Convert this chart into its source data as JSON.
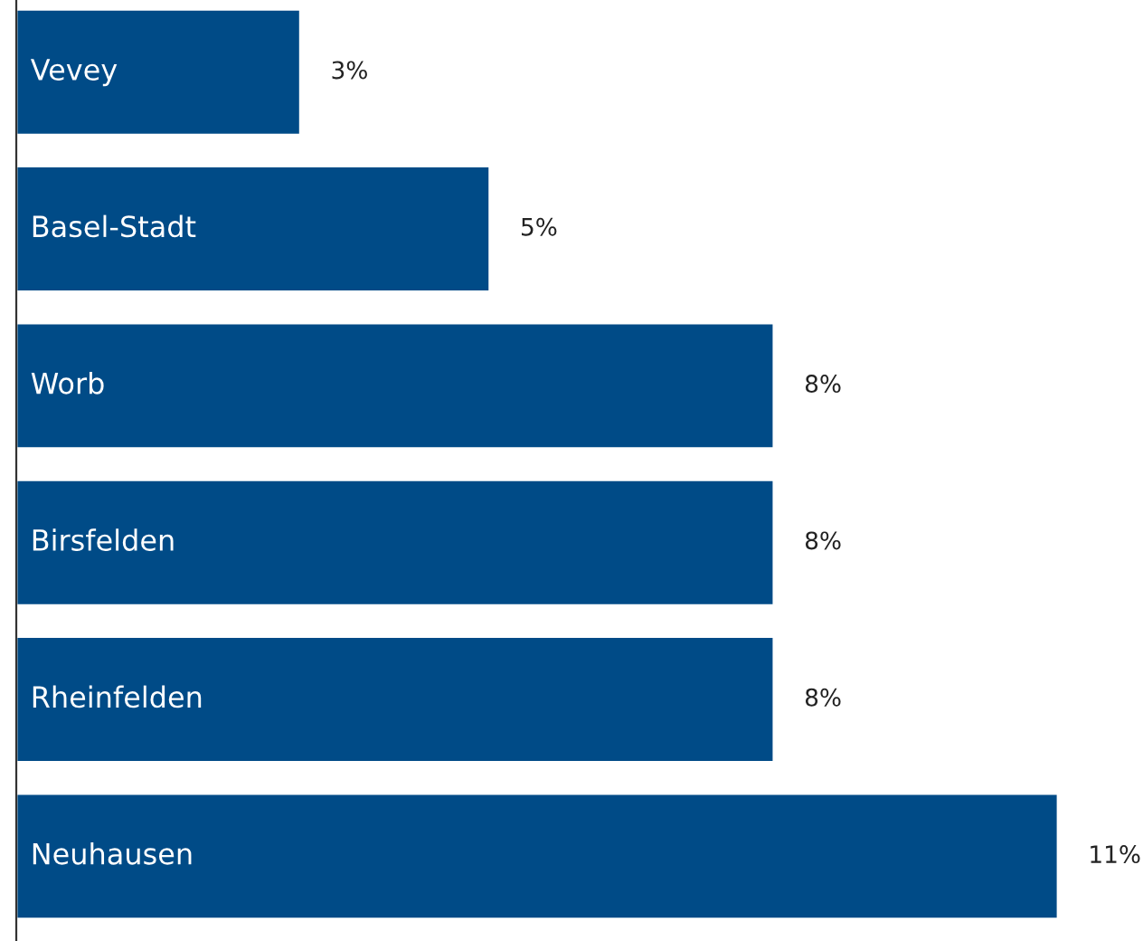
{
  "chart_data": {
    "type": "bar",
    "orientation": "horizontal",
    "categories": [
      "Vevey",
      "Basel-Stadt",
      "Worb",
      "Birsfelden",
      "Rheinfelden",
      "Neuhausen"
    ],
    "values": [
      3,
      5,
      8,
      8,
      8,
      11
    ],
    "value_labels": [
      "3%",
      "5%",
      "8%",
      "8%",
      "8%",
      "11%"
    ],
    "color": "#004b87",
    "grid": false,
    "legend": false
  }
}
